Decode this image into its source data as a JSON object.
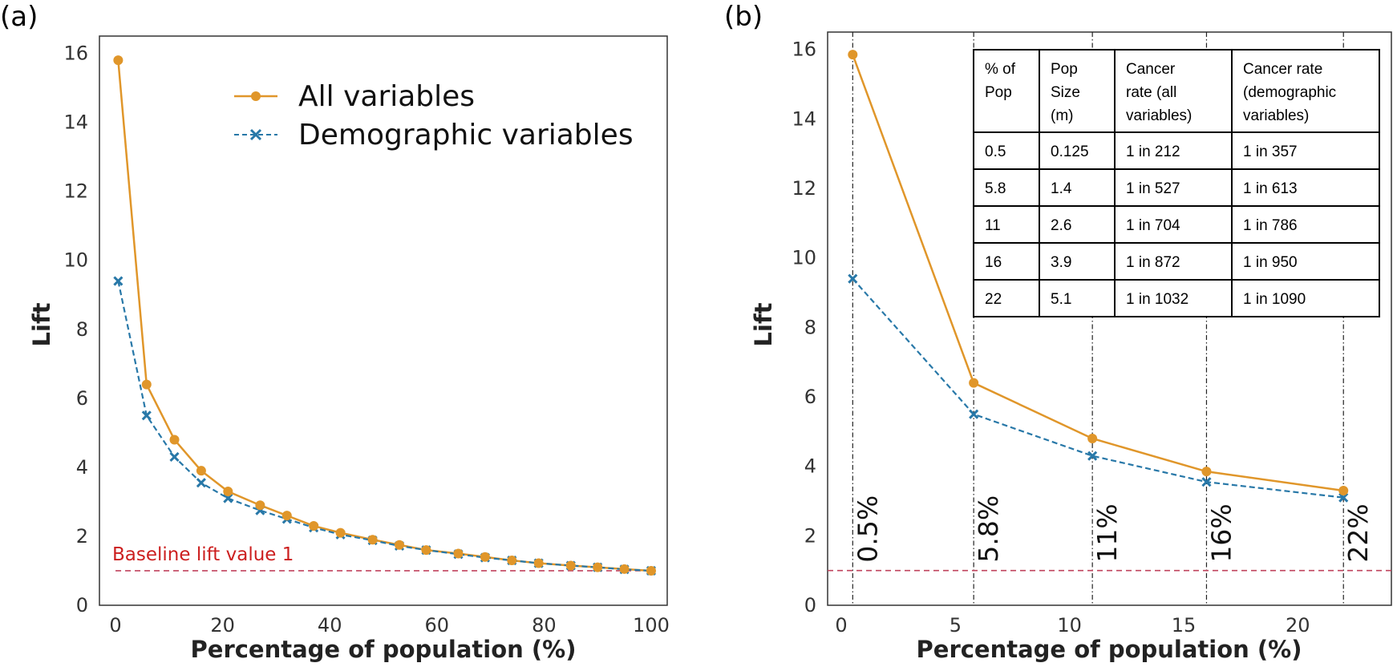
{
  "colors": {
    "all": "#e0962a",
    "demo": "#2878a8",
    "baseline": "#c0435d",
    "baseline_text": "#cc1f1f"
  },
  "chart_data": [
    {
      "panel_label": "(a)",
      "type": "line",
      "xlabel": "Percentage of population (%)",
      "ylabel": "Lift",
      "xlim": [
        -3,
        103
      ],
      "ylim": [
        0,
        16.5
      ],
      "xticks": [
        0,
        20,
        40,
        60,
        80,
        100
      ],
      "yticks": [
        0,
        2,
        4,
        6,
        8,
        10,
        12,
        14,
        16
      ],
      "grid": false,
      "legend_placement": "top-right",
      "series": [
        {
          "name": "All variables",
          "marker": "circle",
          "style": "solid",
          "x": [
            0.5,
            5.8,
            11,
            16,
            21,
            27,
            32,
            37,
            42,
            48,
            53,
            58,
            64,
            69,
            74,
            79,
            85,
            90,
            95,
            100
          ],
          "y": [
            15.8,
            6.4,
            4.8,
            3.9,
            3.3,
            2.9,
            2.6,
            2.3,
            2.1,
            1.9,
            1.75,
            1.6,
            1.5,
            1.4,
            1.3,
            1.22,
            1.15,
            1.1,
            1.05,
            1.0
          ]
        },
        {
          "name": "Demographic variables",
          "marker": "x",
          "style": "dashed",
          "x": [
            0.5,
            5.8,
            11,
            16,
            21,
            27,
            32,
            37,
            42,
            48,
            53,
            58,
            64,
            69,
            74,
            79,
            85,
            90,
            95,
            100
          ],
          "y": [
            9.4,
            5.5,
            4.3,
            3.55,
            3.1,
            2.75,
            2.5,
            2.25,
            2.05,
            1.88,
            1.72,
            1.6,
            1.48,
            1.38,
            1.3,
            1.22,
            1.15,
            1.1,
            1.04,
            1.0
          ]
        }
      ],
      "baseline": {
        "y": 1,
        "label": "Baseline lift value 1"
      }
    },
    {
      "panel_label": "(b)",
      "type": "line",
      "xlabel": "Percentage of population (%)",
      "ylabel": "Lift",
      "xlim": [
        -0.6,
        24.1
      ],
      "ylim": [
        0,
        16.5
      ],
      "xticks": [
        0,
        5,
        10,
        15,
        20
      ],
      "yticks": [
        0,
        2,
        4,
        6,
        8,
        10,
        12,
        14,
        16
      ],
      "grid": false,
      "series": [
        {
          "name": "All variables",
          "marker": "circle",
          "style": "solid",
          "x": [
            0.5,
            5.8,
            11,
            16,
            22
          ],
          "y": [
            15.85,
            6.4,
            4.8,
            3.85,
            3.3
          ]
        },
        {
          "name": "Demographic variables",
          "marker": "x",
          "style": "dashed",
          "x": [
            0.5,
            5.8,
            11,
            16,
            22
          ],
          "y": [
            9.4,
            5.5,
            4.3,
            3.55,
            3.1
          ]
        }
      ],
      "baseline": {
        "y": 1
      },
      "vlines": [
        {
          "x": 0.5,
          "label": "0.5%"
        },
        {
          "x": 5.8,
          "label": "5.8%"
        },
        {
          "x": 11,
          "label": "11%"
        },
        {
          "x": 16,
          "label": "16%"
        },
        {
          "x": 22,
          "label": "22%"
        }
      ],
      "table": {
        "headers": [
          [
            "% of",
            "Pop"
          ],
          [
            "Pop",
            "Size",
            "(m)"
          ],
          [
            "Cancer",
            "rate (all",
            "variables)"
          ],
          [
            "Cancer rate",
            "(demographic",
            "variables)"
          ]
        ],
        "rows": [
          [
            "0.5",
            "0.125",
            "1 in 212",
            "1 in 357"
          ],
          [
            "5.8",
            "1.4",
            "1 in 527",
            "1 in 613"
          ],
          [
            "11",
            "2.6",
            "1 in 704",
            "1 in 786"
          ],
          [
            "16",
            "3.9",
            "1 in 872",
            "1 in 950"
          ],
          [
            "22",
            "5.1",
            "1 in 1032",
            "1 in 1090"
          ]
        ]
      }
    }
  ]
}
